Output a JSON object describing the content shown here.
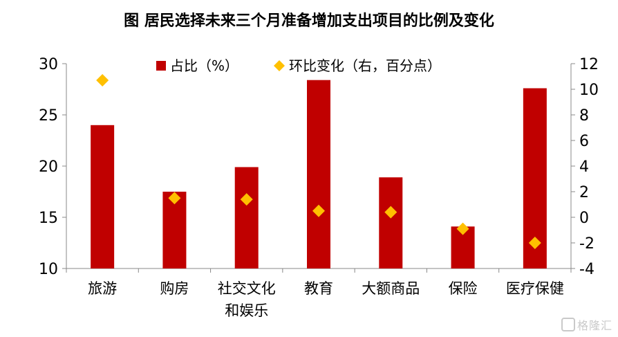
{
  "title": "图  居民选择未来三个月准备增加支出项目的比例及变化",
  "watermark": "格隆汇",
  "chart_data": {
    "type": "bar",
    "title": "图  居民选择未来三个月准备增加支出项目的比例及变化",
    "categories": [
      [
        "旅游"
      ],
      [
        "购房"
      ],
      [
        "社交文化",
        "和娱乐"
      ],
      [
        "教育"
      ],
      [
        "大额商品"
      ],
      [
        "保险"
      ],
      [
        "医疗保健"
      ]
    ],
    "series": [
      {
        "name": "占比（%）",
        "type": "bar",
        "axis": "left",
        "color": "#C00000",
        "values": [
          24.0,
          17.5,
          19.9,
          28.4,
          18.9,
          14.1,
          27.6
        ]
      },
      {
        "name": "环比变化（右，百分点）",
        "type": "scatter",
        "marker": "diamond",
        "axis": "right",
        "color": "#FFC000",
        "values": [
          10.7,
          1.5,
          1.4,
          0.5,
          0.4,
          -0.9,
          -2.0
        ]
      }
    ],
    "ylim": [
      10,
      30
    ],
    "yticks": [
      10,
      15,
      20,
      25,
      30
    ],
    "y2lim": [
      -4,
      12
    ],
    "y2ticks": [
      -4,
      -2,
      0,
      2,
      4,
      6,
      8,
      10,
      12
    ],
    "legend_position": "top-center",
    "grid": false
  }
}
